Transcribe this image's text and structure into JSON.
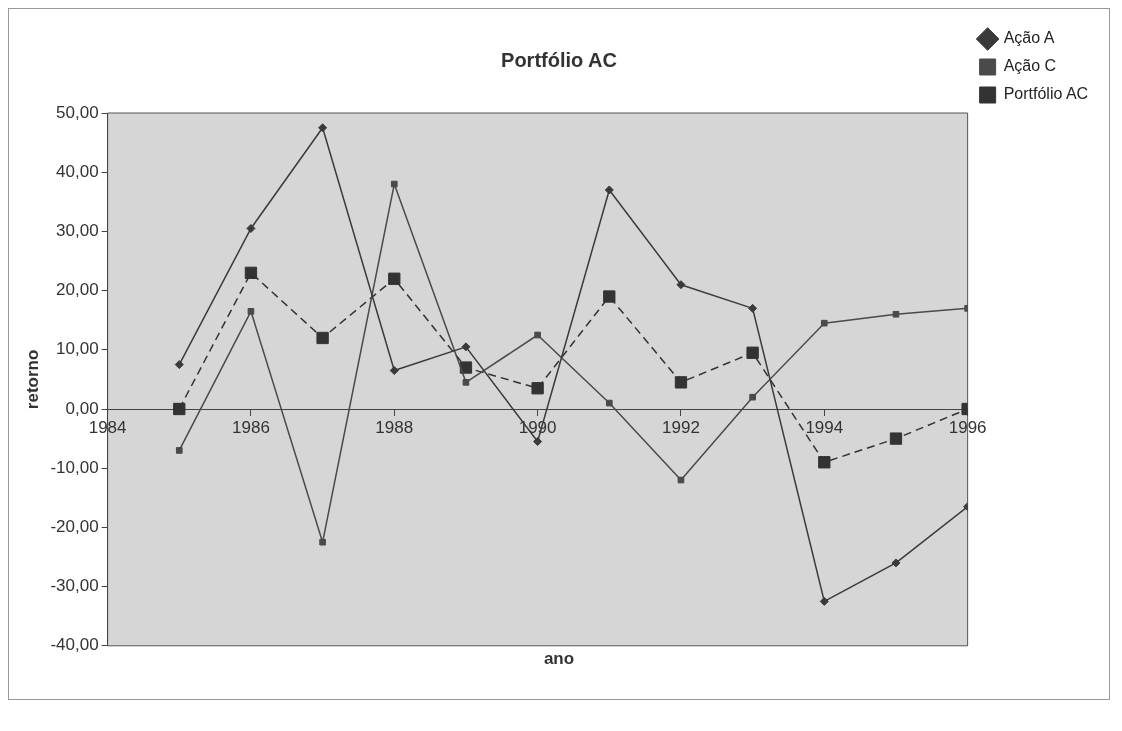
{
  "chart_data": {
    "type": "line",
    "title": "Portfólio AC",
    "xlabel": "ano",
    "ylabel": "retorno",
    "x": [
      1985,
      1986,
      1987,
      1988,
      1989,
      1990,
      1991,
      1992,
      1993,
      1994,
      1995,
      1996
    ],
    "series": [
      {
        "name": "Ação A",
        "color": "#3a3a3a",
        "marker": "diamond",
        "line_style": "solid",
        "values": [
          7.5,
          30.5,
          47.5,
          6.5,
          10.5,
          -5.5,
          37,
          21,
          17,
          -32.5,
          -26,
          -16.5
        ]
      },
      {
        "name": "Ação C",
        "color": "#4a4a4a",
        "marker": "square",
        "line_style": "solid",
        "values": [
          -7,
          16.5,
          -22.5,
          38,
          4.5,
          12.5,
          1,
          -12,
          2,
          14.5,
          16,
          17
        ]
      },
      {
        "name": "Portfólio AC",
        "color": "#333333",
        "marker": "square",
        "line_style": "dashed",
        "values": [
          0,
          23,
          12,
          22,
          7,
          3.5,
          19,
          4.5,
          9.5,
          -9,
          -5,
          0
        ]
      }
    ],
    "xlim": [
      1984,
      1996
    ],
    "xticks": [
      1984,
      1986,
      1988,
      1990,
      1992,
      1994,
      1996
    ],
    "ylim": [
      -40,
      50
    ],
    "yticks": [
      {
        "value": -40,
        "label": "-40,00"
      },
      {
        "value": -30,
        "label": "-30,00"
      },
      {
        "value": -20,
        "label": "-20,00"
      },
      {
        "value": -10,
        "label": "-10,00"
      },
      {
        "value": 0,
        "label": "0,00"
      },
      {
        "value": 10,
        "label": "10,00"
      },
      {
        "value": 20,
        "label": "20,00"
      },
      {
        "value": 30,
        "label": "30,00"
      },
      {
        "value": 40,
        "label": "40,00"
      },
      {
        "value": 50,
        "label": "50,00"
      }
    ],
    "grid": false,
    "legend": "top right"
  }
}
